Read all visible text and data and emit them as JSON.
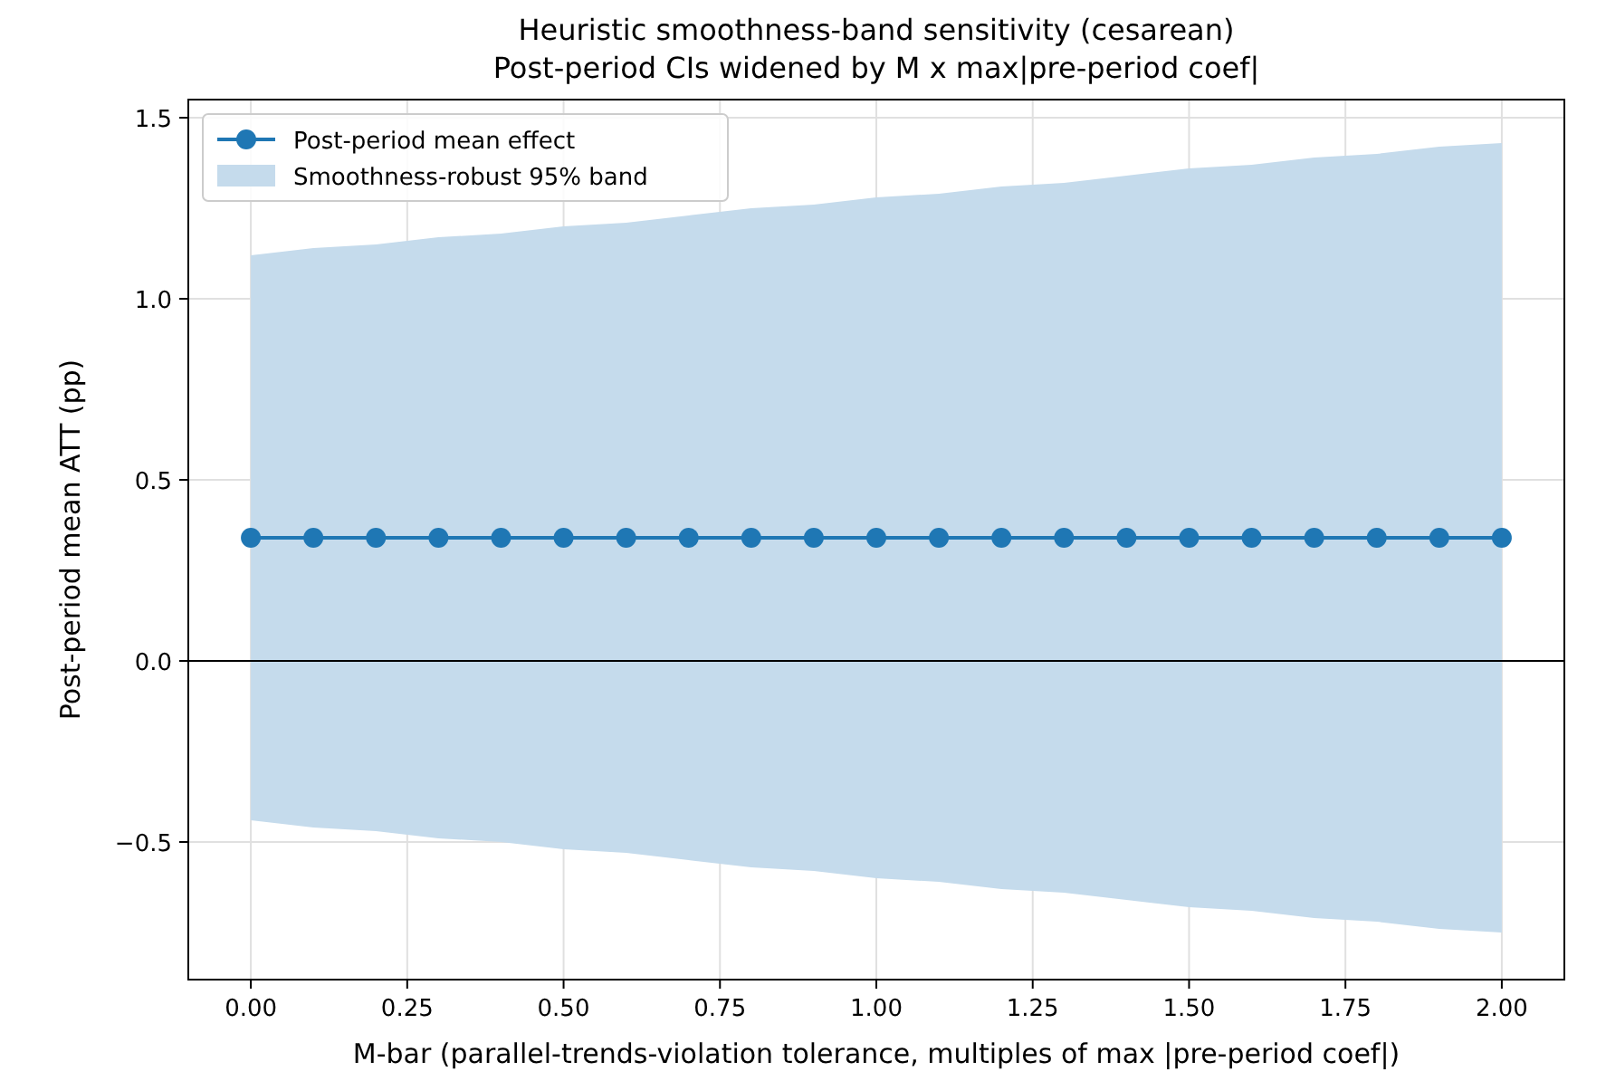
{
  "chart_data": {
    "type": "line",
    "title": "Heuristic smoothness-band sensitivity (cesarean)",
    "subtitle": "Post-period CIs widened by M x max|pre-period coef|",
    "xlabel": "M-bar (parallel-trends-violation tolerance, multiples of max |pre-period coef|)",
    "ylabel": "Post-period mean ATT (pp)",
    "x": [
      0,
      0.1,
      0.2,
      0.3,
      0.4,
      0.5,
      0.6,
      0.7,
      0.8,
      0.9,
      1.0,
      1.1,
      1.2,
      1.3,
      1.4,
      1.5,
      1.6,
      1.7,
      1.8,
      1.9,
      2.0
    ],
    "series": [
      {
        "name": "Post-period mean effect",
        "color": "#1f77b4",
        "values": [
          0.34,
          0.34,
          0.34,
          0.34,
          0.34,
          0.34,
          0.34,
          0.34,
          0.34,
          0.34,
          0.34,
          0.34,
          0.34,
          0.34,
          0.34,
          0.34,
          0.34,
          0.34,
          0.34,
          0.34,
          0.34
        ],
        "lower": [
          -0.44,
          -0.46,
          -0.47,
          -0.49,
          -0.5,
          -0.52,
          -0.53,
          -0.55,
          -0.57,
          -0.58,
          -0.6,
          -0.61,
          -0.63,
          -0.64,
          -0.66,
          -0.68,
          -0.69,
          -0.71,
          -0.72,
          -0.74,
          -0.75
        ],
        "upper": [
          1.12,
          1.14,
          1.15,
          1.17,
          1.18,
          1.2,
          1.21,
          1.23,
          1.25,
          1.26,
          1.28,
          1.29,
          1.31,
          1.32,
          1.34,
          1.36,
          1.37,
          1.39,
          1.4,
          1.42,
          1.43
        ]
      },
      {
        "type": "area",
        "name": "Smoothness-robust 95% band",
        "color": "#c5dbec",
        "values": [
          null,
          null,
          null,
          null,
          null,
          null,
          null,
          null,
          null,
          null,
          null,
          null,
          null,
          null,
          null,
          null,
          null,
          null,
          null,
          null,
          null
        ]
      }
    ],
    "xlim": [
      -0.1,
      2.1
    ],
    "xticks": [
      {
        "value": 0,
        "label": "0.00"
      },
      {
        "value": 0.25,
        "label": "0.25"
      },
      {
        "value": 0.5,
        "label": "0.50"
      },
      {
        "value": 0.75,
        "label": "0.75"
      },
      {
        "value": 1,
        "label": "1.00"
      },
      {
        "value": 1.25,
        "label": "1.25"
      },
      {
        "value": 1.5,
        "label": "1.50"
      },
      {
        "value": 1.75,
        "label": "1.75"
      },
      {
        "value": 2,
        "label": "2.00"
      }
    ],
    "ylim": [
      -0.88,
      1.55
    ],
    "yticks": [
      {
        "value": -0.5,
        "label": "−0.5"
      },
      {
        "value": 0,
        "label": "0.0"
      },
      {
        "value": 0.5,
        "label": "0.5"
      },
      {
        "value": 1,
        "label": "1.0"
      },
      {
        "value": 1.5,
        "label": "1.5"
      }
    ],
    "ref_lines": [
      {
        "axis": "y",
        "value": 0,
        "color": "#000000"
      }
    ],
    "grid": true,
    "legend": "top left",
    "marker": "circle",
    "line_style": "solid"
  }
}
